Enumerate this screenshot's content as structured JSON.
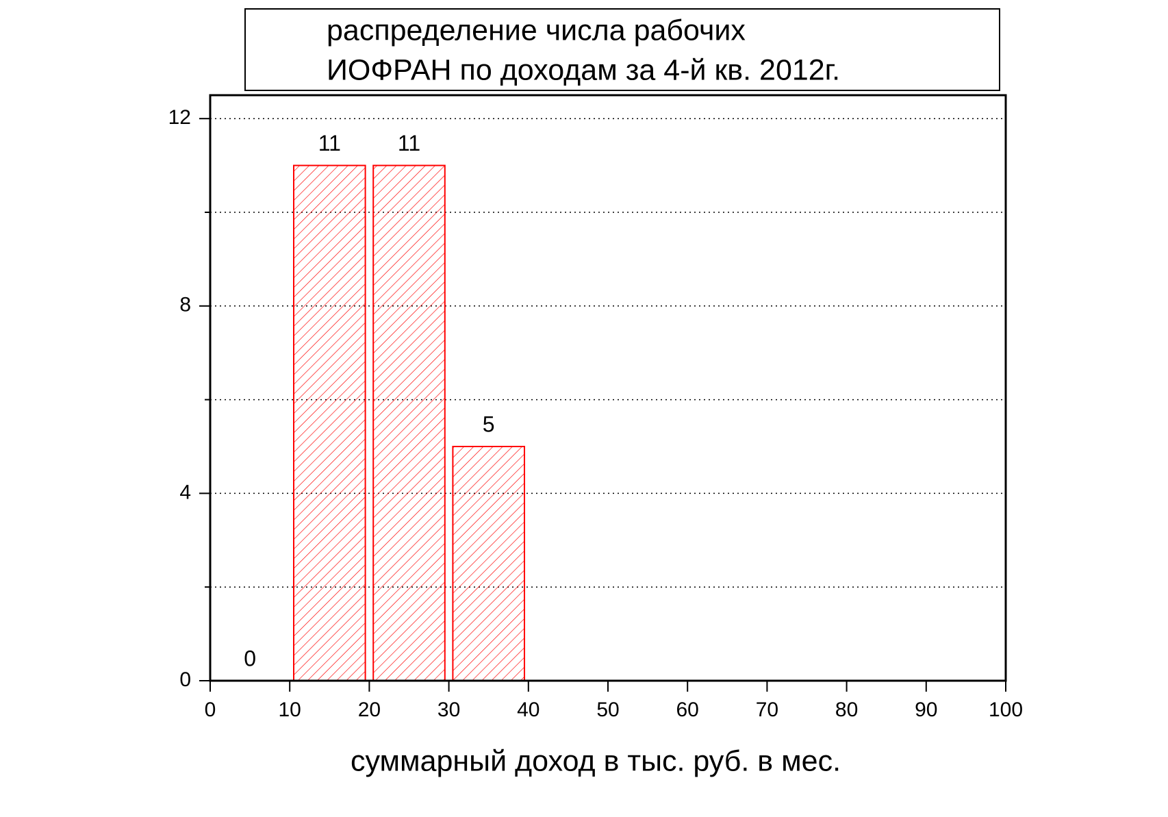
{
  "chart_data": {
    "type": "histogram",
    "title": [
      "распределение числа рабочих",
      "ИОФРАН по доходам за 4-й кв.  2012г."
    ],
    "xlabel": "суммарный доход в тыс. руб. в мес.",
    "bins": [
      0,
      10,
      20,
      30,
      40
    ],
    "values": [
      0,
      11,
      11,
      5
    ],
    "color": "#ff0000",
    "xlim": [
      0,
      100
    ],
    "xticks": [
      0,
      10,
      20,
      30,
      40,
      50,
      60,
      70,
      80,
      90,
      100
    ],
    "ylim": [
      0,
      12.5
    ],
    "yticks": [
      0,
      4,
      8,
      12
    ],
    "yminorticks": [
      2,
      6,
      10
    ],
    "grid": true
  }
}
